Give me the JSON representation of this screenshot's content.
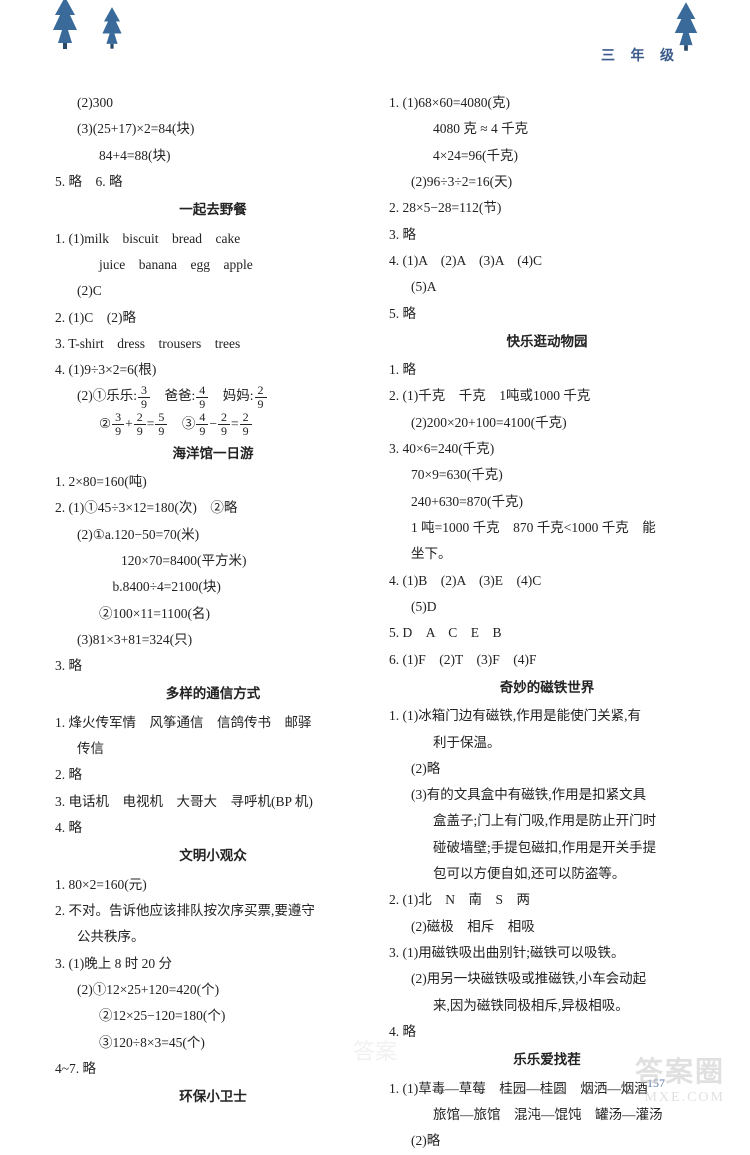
{
  "header": {
    "grade": "三 年 级",
    "page_number": "157",
    "tree_color": "#3a6a9a",
    "tree_dark": "#2a4a6a"
  },
  "watermark": {
    "line1": "答案圈",
    "line2": "MXE.COM",
    "center": "答案"
  },
  "left_col": [
    {
      "cls": "sub1",
      "t": "(2)300"
    },
    {
      "cls": "sub1",
      "t": "(3)(25+17)×2=84(块)"
    },
    {
      "cls": "sub2",
      "t": "84+4=88(块)"
    },
    {
      "cls": "item",
      "t": "5. 略　6. 略"
    },
    {
      "cls": "section-title",
      "t": "一起去野餐"
    },
    {
      "cls": "item",
      "t": "1. (1)milk　biscuit　bread　cake"
    },
    {
      "cls": "sub2",
      "t": "juice　banana　egg　apple"
    },
    {
      "cls": "sub1",
      "t": "(2)C"
    },
    {
      "cls": "item",
      "t": "2. (1)C　(2)略"
    },
    {
      "cls": "item",
      "t": "3. T-shirt　dress　trousers　trees"
    },
    {
      "cls": "item",
      "t": "4. (1)9÷3×2=6(根)"
    },
    {
      "cls": "sub1",
      "html": "(2)①乐乐:<span class=\"frac\"><span class=\"num\">3</span><span class=\"den\">9</span></span>　爸爸:<span class=\"frac\"><span class=\"num\">4</span><span class=\"den\">9</span></span>　妈妈:<span class=\"frac\"><span class=\"num\">2</span><span class=\"den\">9</span></span>"
    },
    {
      "cls": "sub2",
      "html": "②<span class=\"frac\"><span class=\"num\">3</span><span class=\"den\">9</span></span>+<span class=\"frac\"><span class=\"num\">2</span><span class=\"den\">9</span></span>=<span class=\"frac\"><span class=\"num\">5</span><span class=\"den\">9</span></span>　③<span class=\"frac\"><span class=\"num\">4</span><span class=\"den\">9</span></span>−<span class=\"frac\"><span class=\"num\">2</span><span class=\"den\">9</span></span>=<span class=\"frac\"><span class=\"num\">2</span><span class=\"den\">9</span></span>"
    },
    {
      "cls": "section-title",
      "t": "海洋馆一日游"
    },
    {
      "cls": "item",
      "t": "1. 2×80=160(吨)"
    },
    {
      "cls": "item",
      "t": "2. (1)①45÷3×12=180(次)　②略"
    },
    {
      "cls": "sub1",
      "t": "(2)①a.120−50=70(米)"
    },
    {
      "cls": "sub3",
      "t": "120×70=8400(平方米)"
    },
    {
      "cls": "sub2",
      "t": "　b.8400÷4=2100(块)"
    },
    {
      "cls": "sub2",
      "t": "②100×11=1100(名)"
    },
    {
      "cls": "sub1",
      "t": "(3)81×3+81=324(只)"
    },
    {
      "cls": "item",
      "t": "3. 略"
    },
    {
      "cls": "section-title",
      "t": "多样的通信方式"
    },
    {
      "cls": "item",
      "t": "1. 烽火传军情　风筝通信　信鸽传书　邮驿"
    },
    {
      "cls": "sub1",
      "t": "传信"
    },
    {
      "cls": "item",
      "t": "2. 略"
    },
    {
      "cls": "item",
      "t": "3. 电话机　电视机　大哥大　寻呼机(BP 机)"
    },
    {
      "cls": "item",
      "t": "4. 略"
    },
    {
      "cls": "section-title",
      "t": "文明小观众"
    },
    {
      "cls": "item",
      "t": "1. 80×2=160(元)"
    },
    {
      "cls": "item",
      "t": "2. 不对。告诉他应该排队按次序买票,要遵守"
    },
    {
      "cls": "sub1",
      "t": "公共秩序。"
    },
    {
      "cls": "item",
      "t": "3. (1)晚上 8 时 20 分"
    },
    {
      "cls": "sub1",
      "t": "(2)①12×25+120=420(个)"
    },
    {
      "cls": "sub2",
      "t": "②12×25−120=180(个)"
    },
    {
      "cls": "sub2",
      "t": "③120÷8×3=45(个)"
    },
    {
      "cls": "item",
      "t": "4~7. 略"
    },
    {
      "cls": "section-title",
      "t": "环保小卫士"
    }
  ],
  "right_col": [
    {
      "cls": "item",
      "t": "1. (1)68×60=4080(克)"
    },
    {
      "cls": "sub2",
      "t": "4080 克 ≈ 4 千克"
    },
    {
      "cls": "sub2",
      "t": "4×24=96(千克)"
    },
    {
      "cls": "sub1",
      "t": "(2)96÷3÷2=16(天)"
    },
    {
      "cls": "item",
      "t": "2. 28×5−28=112(节)"
    },
    {
      "cls": "item",
      "t": "3. 略"
    },
    {
      "cls": "item",
      "t": "4. (1)A　(2)A　(3)A　(4)C"
    },
    {
      "cls": "sub1",
      "t": "(5)A"
    },
    {
      "cls": "item",
      "t": "5. 略"
    },
    {
      "cls": "section-title",
      "t": "快乐逛动物园"
    },
    {
      "cls": "item",
      "t": "1. 略"
    },
    {
      "cls": "item",
      "t": "2. (1)千克　千克　1吨或1000 千克"
    },
    {
      "cls": "sub1",
      "t": "(2)200×20+100=4100(千克)"
    },
    {
      "cls": "item",
      "t": "3. 40×6=240(千克)"
    },
    {
      "cls": "sub1",
      "t": "70×9=630(千克)"
    },
    {
      "cls": "sub1",
      "t": "240+630=870(千克)"
    },
    {
      "cls": "sub1",
      "t": "1 吨=1000 千克　870 千克<1000 千克　能"
    },
    {
      "cls": "sub1",
      "t": "坐下。"
    },
    {
      "cls": "item",
      "t": "4. (1)B　(2)A　(3)E　(4)C"
    },
    {
      "cls": "sub1",
      "t": "(5)D"
    },
    {
      "cls": "item",
      "t": "5. D　A　C　E　B"
    },
    {
      "cls": "item",
      "t": "6. (1)F　(2)T　(3)F　(4)F"
    },
    {
      "cls": "section-title",
      "t": "奇妙的磁铁世界"
    },
    {
      "cls": "item",
      "t": "1. (1)冰箱门边有磁铁,作用是能使门关紧,有"
    },
    {
      "cls": "sub2",
      "t": "利于保温。"
    },
    {
      "cls": "sub1",
      "t": "(2)略"
    },
    {
      "cls": "sub1",
      "t": "(3)有的文具盒中有磁铁,作用是扣紧文具"
    },
    {
      "cls": "sub2",
      "t": "盒盖子;门上有门吸,作用是防止开门时"
    },
    {
      "cls": "sub2",
      "t": "碰破墙壁;手提包磁扣,作用是开关手提"
    },
    {
      "cls": "sub2",
      "t": "包可以方便自如,还可以防盗等。"
    },
    {
      "cls": "item",
      "t": "2. (1)北　N　南　S　两"
    },
    {
      "cls": "sub1",
      "t": "(2)磁极　相斥　相吸"
    },
    {
      "cls": "item",
      "t": "3. (1)用磁铁吸出曲别针;磁铁可以吸铁。"
    },
    {
      "cls": "sub1",
      "t": "(2)用另一块磁铁吸或推磁铁,小车会动起"
    },
    {
      "cls": "sub2",
      "t": "来,因为磁铁同极相斥,异极相吸。"
    },
    {
      "cls": "item",
      "t": "4. 略"
    },
    {
      "cls": "section-title",
      "t": "乐乐爱找茬"
    },
    {
      "cls": "item",
      "t": "1. (1)草毒—草莓　桂园—桂圆　烟洒—烟酒"
    },
    {
      "cls": "sub2",
      "t": "旅馆—旅馆　混沌—馄饨　罐汤—灌汤"
    },
    {
      "cls": "sub1",
      "t": "(2)略"
    }
  ]
}
